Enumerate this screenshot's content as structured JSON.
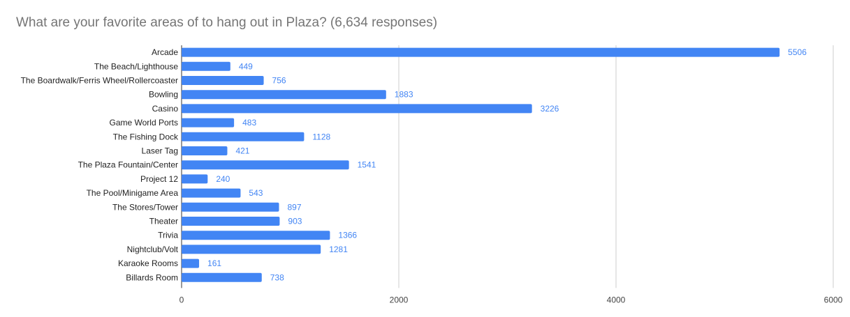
{
  "chart_data": {
    "type": "bar",
    "orientation": "horizontal",
    "title": "What are your favorite areas of to hang out in Plaza? (6,634 responses)",
    "categories": [
      "Arcade",
      "The Beach/Lighthouse",
      "The Boardwalk/Ferris Wheel/Rollercoaster",
      "Bowling",
      "Casino",
      "Game World Ports",
      "The Fishing Dock",
      "Laser Tag",
      "The Plaza Fountain/Center",
      "Project 12",
      "The Pool/Minigame Area",
      "The Stores/Tower",
      "Theater",
      "Trivia",
      "Nightclub/Volt",
      "Karaoke Rooms",
      "Billards Room"
    ],
    "values": [
      5506,
      449,
      756,
      1883,
      3226,
      483,
      1128,
      421,
      1541,
      240,
      543,
      897,
      903,
      1366,
      1281,
      161,
      738
    ],
    "xlim": [
      0,
      6000
    ],
    "xticks": [
      "0",
      "2000",
      "4000",
      "6000"
    ],
    "xlabel": "",
    "ylabel": "",
    "grid": true,
    "legend": "none",
    "bar_color": "#4285f4",
    "value_label_color": "#4285f4",
    "grid_color": "#cccccc"
  }
}
